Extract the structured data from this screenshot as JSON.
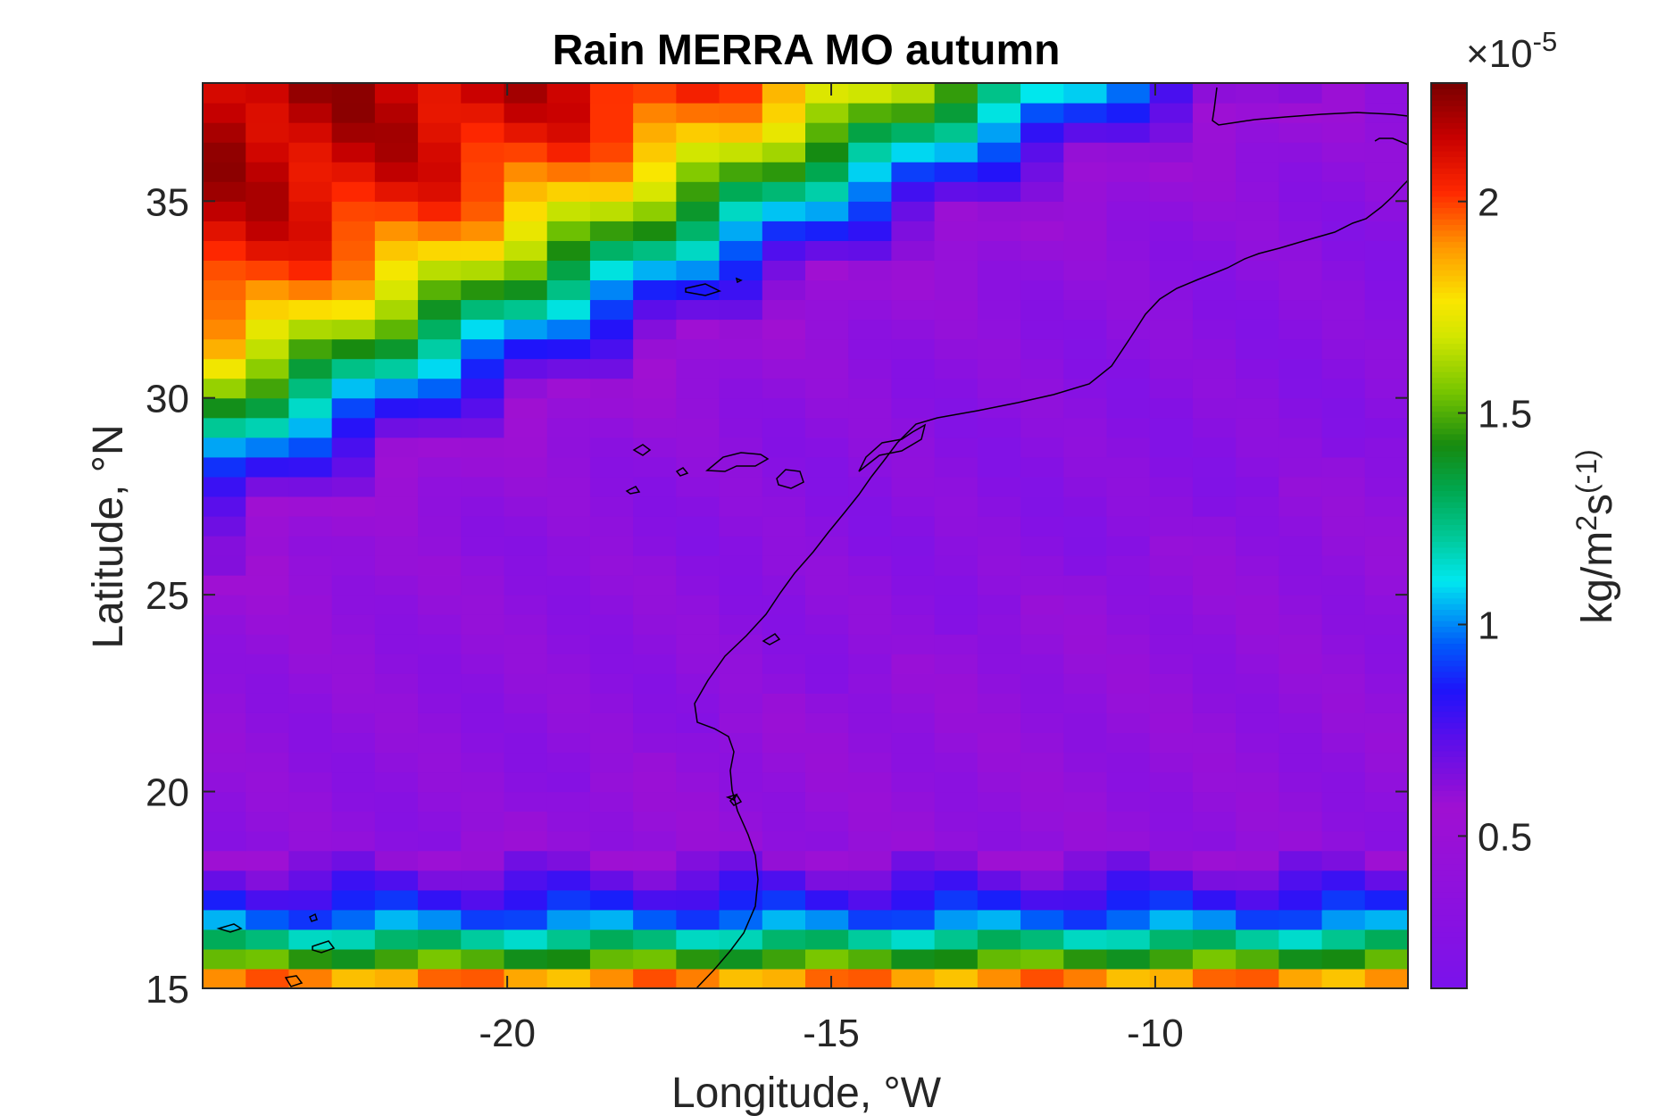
{
  "chart_data": {
    "type": "heatmap",
    "title": "Rain MERRA MO autumn",
    "xlabel": "Longitude, °W",
    "ylabel": "Latitude, °N",
    "xlim": [
      -24.7,
      -6.1
    ],
    "ylim": [
      15,
      38
    ],
    "x_ticks": [
      "-20",
      "-15",
      "-10"
    ],
    "y_ticks": [
      "15",
      "20",
      "25",
      "30",
      "35"
    ],
    "colorbar": {
      "label": "kg/m²s(-1)",
      "label_parts": [
        "kg/m",
        "2",
        "s",
        "(-1)"
      ],
      "exponent_prefix": "×10",
      "exponent": "-5",
      "ticks": [
        "0.5",
        "1",
        "1.5",
        "2"
      ],
      "tick_values": [
        0.5,
        1.0,
        1.5,
        2.0
      ],
      "range": [
        0.14,
        2.28
      ],
      "colormap": "jet-like (purple to dark red)"
    },
    "grid": {
      "columns": 28,
      "rows": 46,
      "cell_width_deg": 0.666,
      "cell_height_deg": 0.5,
      "description": "Precipitation rate in units of 1e-5 kg/m2/s; high (~2.2) in the northwest corner and along the southern edge, minimum (~0.3) over the central interior; a cyan/green band arcs from the southwest to the northeast"
    },
    "overlay": "coastline of northwest Africa and the Canary / Cape Verde islands"
  }
}
